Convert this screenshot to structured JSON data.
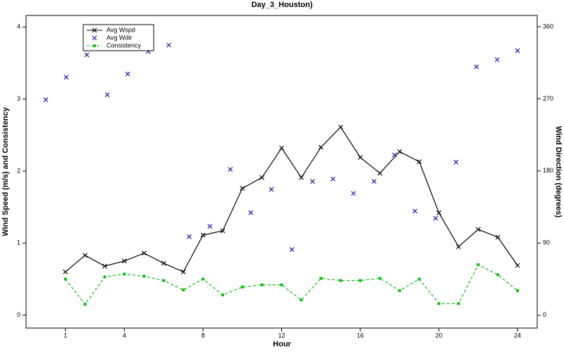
{
  "chart_data": {
    "type": "line",
    "title": "Day_3_Houston)",
    "xlabel": "Hour",
    "ylabel": "Wind Speed (m/s) and Consistency",
    "y2label": "Wind Direction (degrees)",
    "xlim": [
      -1,
      25
    ],
    "xticks": [
      1,
      4,
      8,
      12,
      16,
      20,
      24
    ],
    "ylim": [
      -0.18,
      4.16
    ],
    "yticks": [
      0,
      1,
      2,
      3,
      4
    ],
    "y2lim": [
      -16,
      374
    ],
    "y2ticks": [
      0,
      90,
      180,
      270,
      360
    ],
    "legend": "top-left",
    "series": [
      {
        "name": "Avg Wspd",
        "color": "#000000",
        "line_style": "solid",
        "marker": "x",
        "x": [
          1,
          2,
          3,
          4,
          5,
          6,
          7,
          8,
          9,
          10,
          11,
          12,
          13,
          14,
          15,
          16,
          17,
          18,
          19,
          20,
          21,
          22,
          23,
          24
        ],
        "values": [
          0.6,
          0.83,
          0.68,
          0.75,
          0.86,
          0.72,
          0.6,
          1.11,
          1.17,
          1.76,
          1.91,
          2.32,
          1.91,
          2.33,
          2.61,
          2.19,
          1.97,
          2.27,
          2.13,
          1.42,
          0.95,
          1.19,
          1.08,
          0.69
        ]
      },
      {
        "name": "Avg Wdir",
        "color": "#1a1aa8",
        "line_style": "none",
        "marker": "x",
        "axis": "y2",
        "x": [
          0,
          1.04,
          2.09,
          3.13,
          4.17,
          5.22,
          6.26,
          7.3,
          8.35,
          9.39,
          10.43,
          11.48,
          12.52,
          13.57,
          14.61,
          15.65,
          16.7,
          17.74,
          18.78,
          19.83,
          20.87,
          21.91,
          22.96,
          24
        ],
        "values": [
          269,
          297,
          325,
          275,
          301,
          329,
          337,
          98,
          111,
          182,
          128,
          157,
          82,
          167,
          170,
          152,
          167,
          200,
          130,
          121,
          191,
          310,
          319,
          330
        ]
      },
      {
        "name": "Consistency",
        "color": "#11bb11",
        "line_style": "dashed",
        "marker": "square",
        "x": [
          1,
          2,
          3,
          4,
          5,
          6,
          7,
          8,
          9,
          10,
          11,
          12,
          13,
          14,
          15,
          16,
          17,
          18,
          19,
          20,
          21,
          22,
          23,
          24
        ],
        "values": [
          0.5,
          0.15,
          0.53,
          0.57,
          0.54,
          0.48,
          0.35,
          0.5,
          0.28,
          0.39,
          0.42,
          0.42,
          0.21,
          0.51,
          0.48,
          0.48,
          0.51,
          0.34,
          0.5,
          0.16,
          0.16,
          0.7,
          0.56,
          0.34
        ]
      }
    ]
  }
}
